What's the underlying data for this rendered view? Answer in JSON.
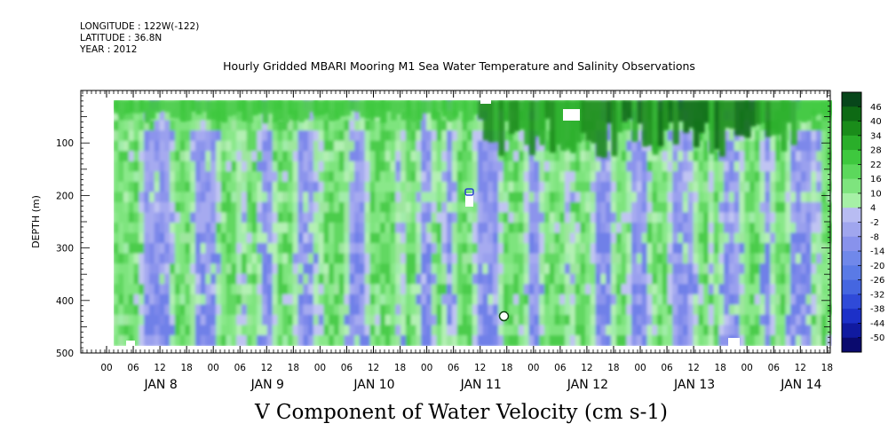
{
  "meta": {
    "longitude": "LONGITUDE : 122W(-122)",
    "latitude": "LATITUDE : 36.8N",
    "year": "YEAR : 2012"
  },
  "title": "Hourly Gridded MBARI Mooring M1 Sea Water Temperature and Salinity Observations",
  "bottom_title": "V Component of Water Velocity (cm s-1)",
  "chart_data": {
    "type": "heatmap",
    "title": "Hourly Gridded MBARI Mooring M1 Sea Water Temperature and Salinity Observations",
    "xlabel": "",
    "ylabel": "DEPTH (m)",
    "x_hour_ticks": [
      "00",
      "06",
      "12",
      "18",
      "00",
      "06",
      "12",
      "18",
      "00",
      "06",
      "12",
      "18",
      "00",
      "06",
      "12",
      "18",
      "00",
      "06",
      "12",
      "18",
      "00",
      "06",
      "12",
      "18",
      "00",
      "06",
      "12",
      "18"
    ],
    "x_day_labels": [
      "JAN  8",
      "JAN  9",
      "JAN 10",
      "JAN 11",
      "JAN 12",
      "JAN 13",
      "JAN 14"
    ],
    "y_ticks": [
      100,
      200,
      300,
      400,
      500
    ],
    "ylim": [
      500,
      0
    ],
    "data_depth_range": [
      15,
      485
    ],
    "colorbar_levels": [
      -50,
      -44,
      -38,
      -32,
      -26,
      -20,
      -14,
      -8,
      -2,
      4,
      10,
      16,
      22,
      28,
      34,
      40,
      46
    ],
    "colorbar_colors": [
      "#0a0a6e",
      "#101aa0",
      "#1c30c8",
      "#2f4ad8",
      "#4566e0",
      "#5a7ae6",
      "#7088ea",
      "#8892ec",
      "#a0a6ee",
      "#b8bcf2",
      "#a6f0a6",
      "#7ee47e",
      "#5cd85c",
      "#3ec83e",
      "#2aae2a",
      "#1a8c1a",
      "#0e6a14",
      "#07461a"
    ],
    "colorbar_label_values": [
      46,
      40,
      34,
      28,
      22,
      16,
      10,
      4,
      -2,
      -8,
      -14,
      -20,
      -26,
      -32,
      -38,
      -44,
      -50
    ],
    "column_classes": [
      2,
      2,
      2,
      2,
      2,
      1,
      0,
      0,
      0,
      0,
      0,
      1,
      2,
      2,
      2,
      1,
      0,
      0,
      0,
      0,
      1,
      2,
      2,
      2,
      1,
      1,
      2,
      2,
      1,
      0,
      0,
      1,
      2,
      2,
      2,
      1,
      0,
      0,
      0,
      1,
      1,
      2,
      2,
      2,
      2,
      1,
      0,
      0,
      0,
      1,
      2,
      2,
      2,
      2,
      2,
      1,
      1,
      2,
      2,
      1,
      0,
      0,
      1,
      2,
      1,
      0,
      1,
      2,
      2,
      2,
      1,
      0,
      0,
      0,
      0,
      1,
      2,
      2,
      2,
      2,
      1,
      0,
      0,
      1,
      2,
      2,
      2,
      2,
      1,
      1,
      2,
      2,
      2,
      1,
      0,
      0,
      0,
      1,
      2,
      2,
      1,
      0,
      0,
      0,
      1,
      2,
      2,
      2,
      1,
      0,
      0,
      0,
      0,
      1,
      2,
      2,
      1,
      2,
      1,
      0,
      0,
      0,
      1,
      2,
      2,
      2,
      1,
      0,
      1,
      2,
      2,
      1,
      0,
      0,
      0,
      0,
      1,
      1,
      2,
      2
    ]
  }
}
